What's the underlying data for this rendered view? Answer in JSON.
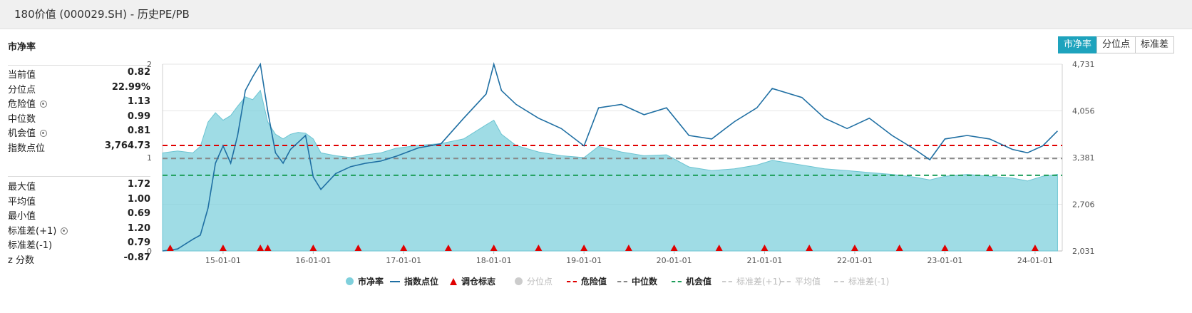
{
  "header": {
    "title": "180价值 (000029.SH) - 历史PE/PB"
  },
  "section_title": "市净率",
  "tabs": [
    {
      "label": "市净率",
      "active": true
    },
    {
      "label": "分位点",
      "active": false
    },
    {
      "label": "标准差",
      "active": false
    }
  ],
  "stats_top": [
    {
      "label": "当前值",
      "value": "0.82",
      "gear": false
    },
    {
      "label": "分位点",
      "value": "22.99%",
      "gear": false
    },
    {
      "label": "危险值",
      "value": "1.13",
      "gear": true
    },
    {
      "label": "中位数",
      "value": "0.99",
      "gear": false
    },
    {
      "label": "机会值",
      "value": "0.81",
      "gear": true
    },
    {
      "label": "指数点位",
      "value": "3,764.73",
      "gear": false
    }
  ],
  "stats_bottom": [
    {
      "label": "最大值",
      "value": "1.72",
      "gear": false
    },
    {
      "label": "平均值",
      "value": "1.00",
      "gear": false
    },
    {
      "label": "最小值",
      "value": "0.69",
      "gear": false
    },
    {
      "label": "标准差(+1)",
      "value": "1.20",
      "gear": true
    },
    {
      "label": "标准差(-1)",
      "value": "0.79",
      "gear": false
    },
    {
      "label": "z 分数",
      "value": "-0.87",
      "gear": false
    }
  ],
  "legend": [
    {
      "label": "市净率",
      "kind": "dot",
      "color": "#7fd0dc",
      "active": true
    },
    {
      "label": "指数点位",
      "kind": "line",
      "color": "#1f6fa3",
      "active": true
    },
    {
      "label": "调仓标志",
      "kind": "triangle",
      "color": "#e00000",
      "active": true
    },
    {
      "label": "分位点",
      "kind": "dot",
      "color": "#cccccc",
      "active": false
    },
    {
      "label": "危险值",
      "kind": "dash",
      "color": "#e00000",
      "active": true
    },
    {
      "label": "中位数",
      "kind": "dash",
      "color": "#888888",
      "active": true
    },
    {
      "label": "机会值",
      "kind": "dash",
      "color": "#1e9e5a",
      "active": true
    },
    {
      "label": "标准差(+1)",
      "kind": "dash",
      "color": "#cccccc",
      "active": false
    },
    {
      "label": "平均值",
      "kind": "dash",
      "color": "#cccccc",
      "active": false
    },
    {
      "label": "标准差(-1)",
      "kind": "dash",
      "color": "#cccccc",
      "active": false
    }
  ],
  "chart_data": {
    "type": "area",
    "x_ticks": [
      "15-01-01",
      "16-01-01",
      "17-01-01",
      "18-01-01",
      "19-01-01",
      "20-01-01",
      "21-01-01",
      "22-01-01",
      "23-01-01",
      "24-01-01"
    ],
    "xlim": [
      "2014-05-01",
      "2024-04-20"
    ],
    "y_left": {
      "ticks": [
        "0",
        "1",
        "2"
      ],
      "lim": [
        0,
        2
      ]
    },
    "y_right": {
      "ticks": [
        "2,031",
        "2,706",
        "3,381",
        "4,056",
        "4,731"
      ],
      "lim": [
        2031,
        4731
      ]
    },
    "reference_lines": [
      {
        "name": "危险值",
        "value": 1.13,
        "color": "#e00000"
      },
      {
        "name": "中位数",
        "value": 0.99,
        "color": "#888888"
      },
      {
        "name": "机会值",
        "value": 0.81,
        "color": "#1e9e5a"
      }
    ],
    "pb_series": {
      "name": "市净率",
      "color": "#7fd0dc",
      "points": [
        [
          "2014-05",
          1.05
        ],
        [
          "2014-07",
          1.07
        ],
        [
          "2014-09",
          1.05
        ],
        [
          "2014-10",
          1.12
        ],
        [
          "2014-11",
          1.38
        ],
        [
          "2014-12",
          1.48
        ],
        [
          "2015-01",
          1.4
        ],
        [
          "2015-02",
          1.45
        ],
        [
          "2015-03",
          1.55
        ],
        [
          "2015-04",
          1.65
        ],
        [
          "2015-05",
          1.62
        ],
        [
          "2015-06",
          1.72
        ],
        [
          "2015-07",
          1.38
        ],
        [
          "2015-08",
          1.25
        ],
        [
          "2015-09",
          1.2
        ],
        [
          "2015-10",
          1.25
        ],
        [
          "2015-11",
          1.27
        ],
        [
          "2015-12",
          1.26
        ],
        [
          "2016-01",
          1.2
        ],
        [
          "2016-02",
          1.05
        ],
        [
          "2016-04",
          1.02
        ],
        [
          "2016-06",
          1.0
        ],
        [
          "2016-08",
          1.03
        ],
        [
          "2016-10",
          1.05
        ],
        [
          "2016-12",
          1.1
        ],
        [
          "2017-03",
          1.13
        ],
        [
          "2017-06",
          1.15
        ],
        [
          "2017-09",
          1.2
        ],
        [
          "2017-12",
          1.35
        ],
        [
          "2018-01",
          1.4
        ],
        [
          "2018-02",
          1.25
        ],
        [
          "2018-04",
          1.13
        ],
        [
          "2018-07",
          1.06
        ],
        [
          "2018-10",
          1.02
        ],
        [
          "2019-01",
          1.0
        ],
        [
          "2019-03",
          1.12
        ],
        [
          "2019-06",
          1.06
        ],
        [
          "2019-09",
          1.02
        ],
        [
          "2019-12",
          1.03
        ],
        [
          "2020-03",
          0.9
        ],
        [
          "2020-06",
          0.86
        ],
        [
          "2020-09",
          0.88
        ],
        [
          "2020-12",
          0.92
        ],
        [
          "2021-02",
          0.97
        ],
        [
          "2021-06",
          0.92
        ],
        [
          "2021-09",
          0.88
        ],
        [
          "2021-12",
          0.86
        ],
        [
          "2022-03",
          0.84
        ],
        [
          "2022-06",
          0.82
        ],
        [
          "2022-09",
          0.79
        ],
        [
          "2022-11",
          0.76
        ],
        [
          "2023-01",
          0.8
        ],
        [
          "2023-04",
          0.82
        ],
        [
          "2023-07",
          0.8
        ],
        [
          "2023-10",
          0.78
        ],
        [
          "2023-12",
          0.75
        ],
        [
          "2024-02",
          0.8
        ],
        [
          "2024-04",
          0.82
        ]
      ]
    },
    "index_series": {
      "name": "指数点位",
      "color": "#1f6fa3",
      "points": [
        [
          "2014-05",
          2031
        ],
        [
          "2014-07",
          2060
        ],
        [
          "2014-09",
          2200
        ],
        [
          "2014-10",
          2260
        ],
        [
          "2014-11",
          2650
        ],
        [
          "2014-12",
          3300
        ],
        [
          "2015-01",
          3550
        ],
        [
          "2015-02",
          3300
        ],
        [
          "2015-03",
          3700
        ],
        [
          "2015-04",
          4350
        ],
        [
          "2015-05",
          4550
        ],
        [
          "2015-06",
          4731
        ],
        [
          "2015-07",
          4050
        ],
        [
          "2015-08",
          3450
        ],
        [
          "2015-09",
          3300
        ],
        [
          "2015-10",
          3500
        ],
        [
          "2015-11",
          3600
        ],
        [
          "2015-12",
          3700
        ],
        [
          "2016-01",
          3100
        ],
        [
          "2016-02",
          2920
        ],
        [
          "2016-04",
          3150
        ],
        [
          "2016-06",
          3250
        ],
        [
          "2016-08",
          3300
        ],
        [
          "2016-10",
          3330
        ],
        [
          "2016-12",
          3400
        ],
        [
          "2017-03",
          3520
        ],
        [
          "2017-06",
          3580
        ],
        [
          "2017-09",
          3950
        ],
        [
          "2017-12",
          4300
        ],
        [
          "2018-01",
          4731
        ],
        [
          "2018-02",
          4350
        ],
        [
          "2018-04",
          4150
        ],
        [
          "2018-07",
          3950
        ],
        [
          "2018-10",
          3800
        ],
        [
          "2019-01",
          3550
        ],
        [
          "2019-03",
          4100
        ],
        [
          "2019-06",
          4150
        ],
        [
          "2019-09",
          4000
        ],
        [
          "2019-12",
          4100
        ],
        [
          "2020-03",
          3700
        ],
        [
          "2020-06",
          3650
        ],
        [
          "2020-09",
          3900
        ],
        [
          "2020-12",
          4100
        ],
        [
          "2021-02",
          4380
        ],
        [
          "2021-06",
          4250
        ],
        [
          "2021-09",
          3950
        ],
        [
          "2021-12",
          3800
        ],
        [
          "2022-03",
          3950
        ],
        [
          "2022-06",
          3700
        ],
        [
          "2022-09",
          3500
        ],
        [
          "2022-11",
          3350
        ],
        [
          "2023-01",
          3650
        ],
        [
          "2023-04",
          3700
        ],
        [
          "2023-07",
          3650
        ],
        [
          "2023-10",
          3500
        ],
        [
          "2023-12",
          3450
        ],
        [
          "2024-02",
          3550
        ],
        [
          "2024-04",
          3765
        ]
      ]
    },
    "rebalance_markers": [
      "2014-06",
      "2015-01",
      "2015-06",
      "2015-07",
      "2016-01",
      "2016-07",
      "2017-01",
      "2017-07",
      "2018-01",
      "2018-07",
      "2019-01",
      "2019-07",
      "2020-01",
      "2020-07",
      "2021-01",
      "2021-07",
      "2022-01",
      "2022-07",
      "2023-01",
      "2023-07",
      "2024-01"
    ]
  }
}
